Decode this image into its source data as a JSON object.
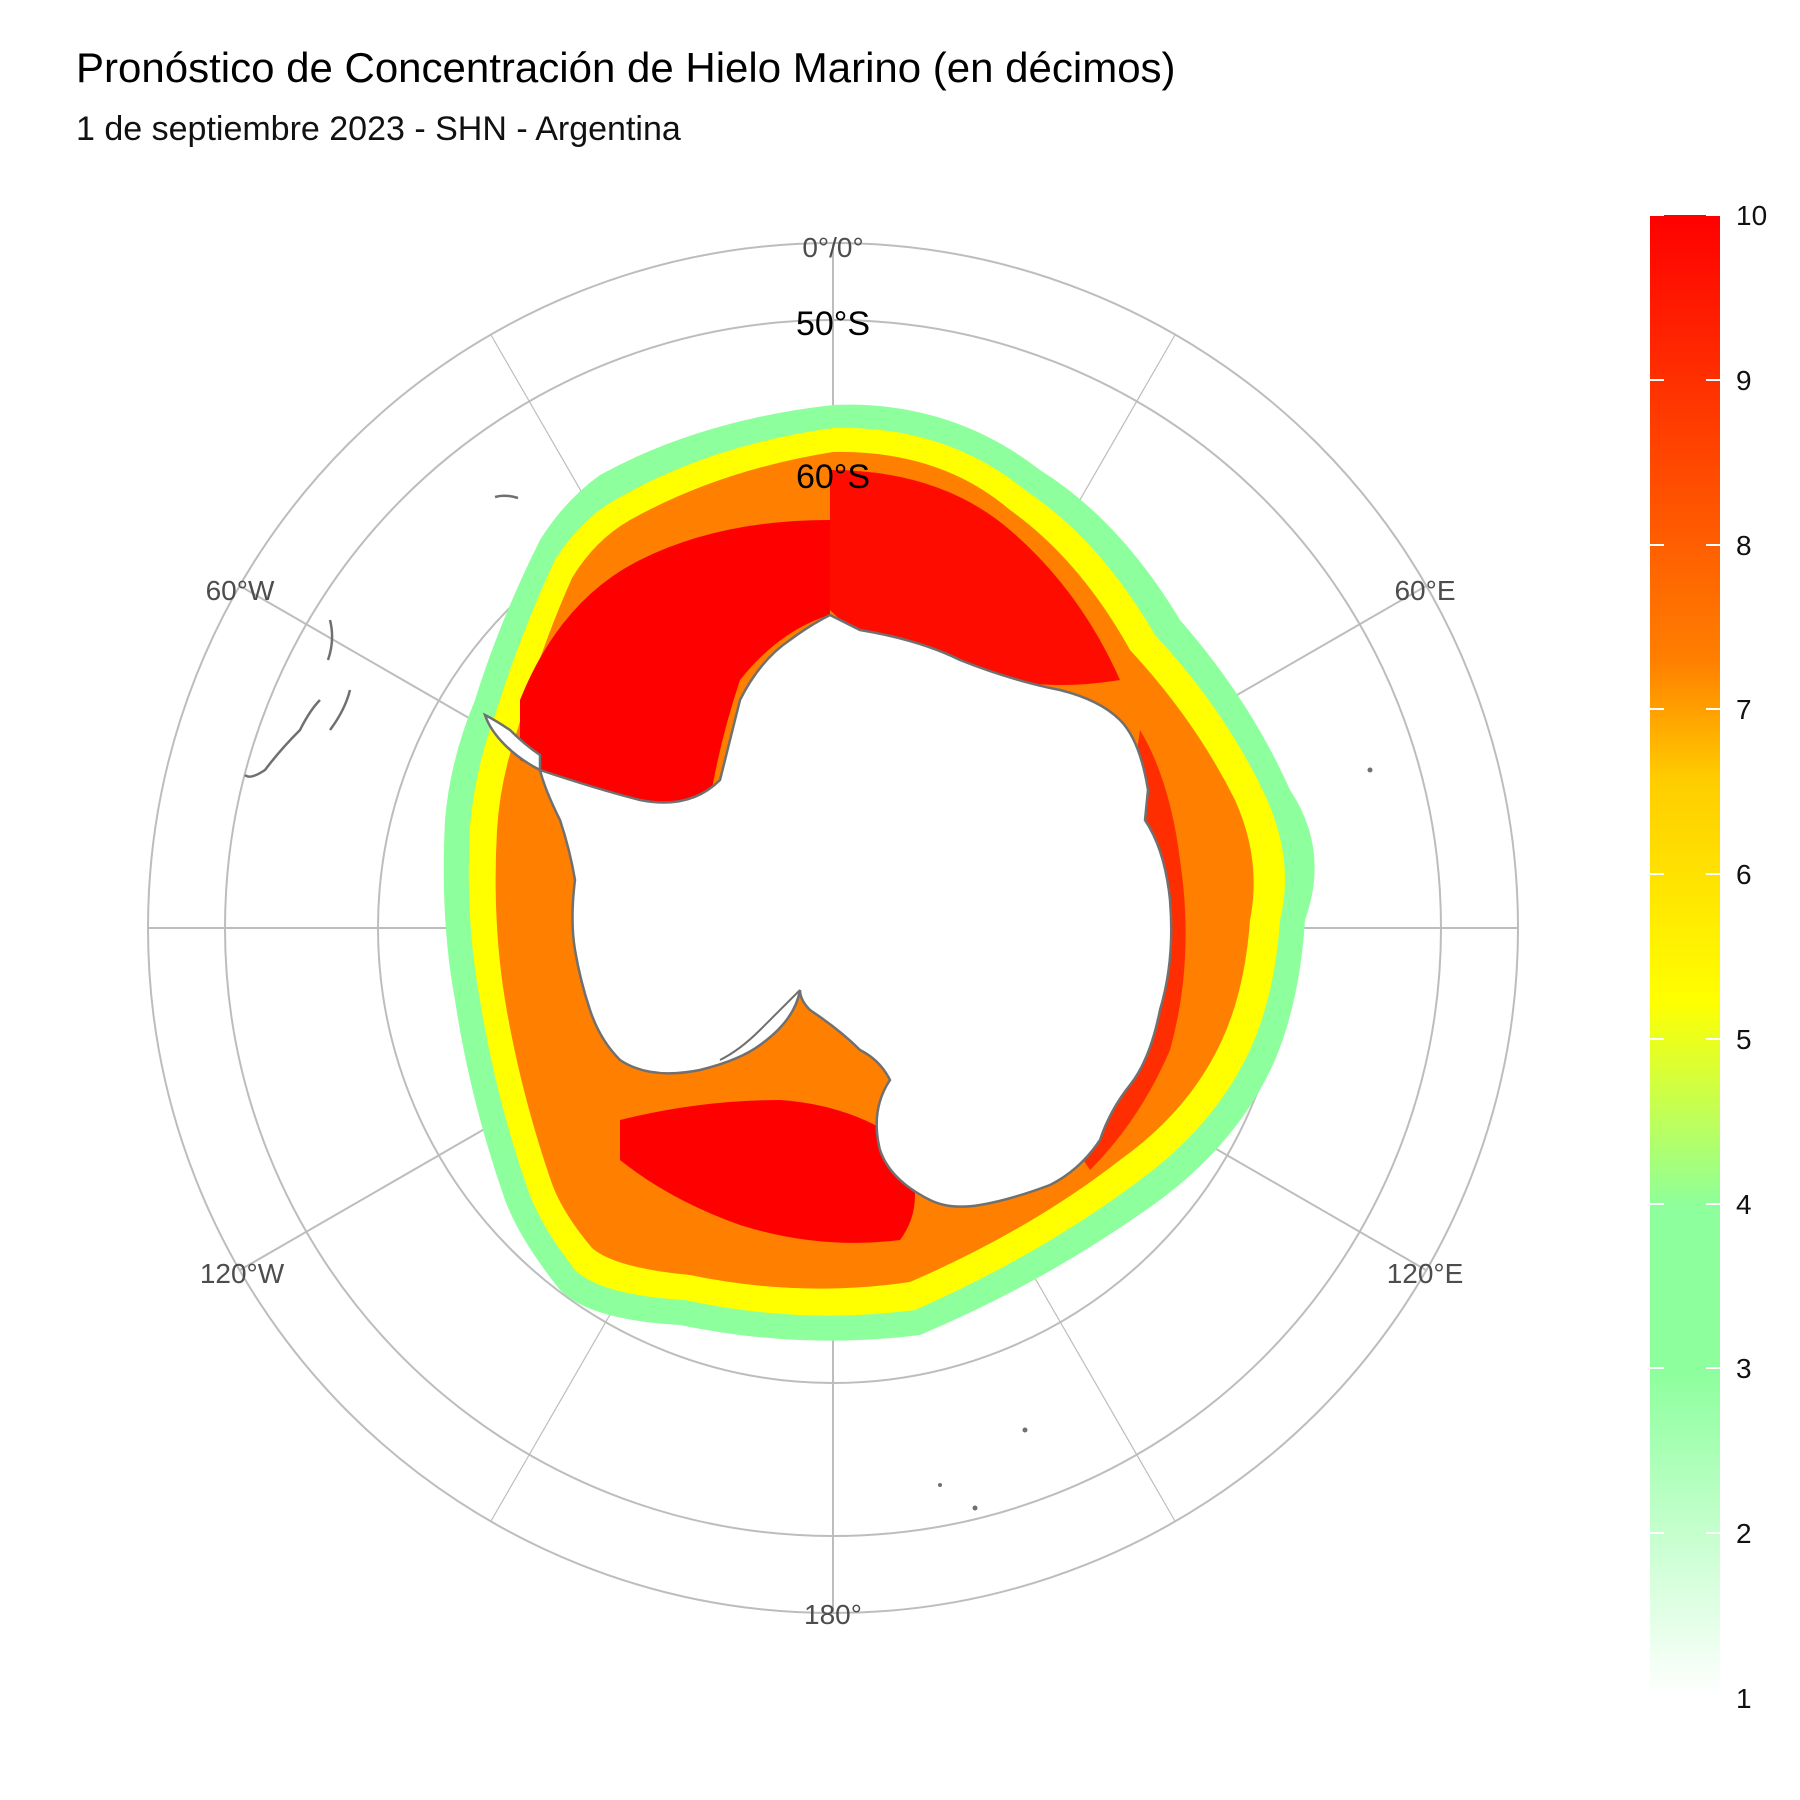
{
  "title": "Pronóstico de Concentración de Hielo Marino (en décimos)",
  "subtitle": "1 de septiembre 2023 - SHN - Argentina",
  "longitude_labels": {
    "top": "0°/0°",
    "upper_left": "60°W",
    "upper_right": "60°E",
    "lower_left": "120°W",
    "lower_right": "120°E",
    "bottom": "180°"
  },
  "latitude_labels": {
    "outer": "50°S",
    "inner": "60°S"
  },
  "legend": {
    "ticks": [
      "10",
      "9",
      "8",
      "7",
      "6",
      "5",
      "4",
      "3",
      "2",
      "1"
    ],
    "range": [
      1,
      10
    ],
    "colors": [
      "#ffffff",
      "#8dff9d",
      "#ffff00",
      "#ff7f00",
      "#ff0000"
    ]
  },
  "colors": {
    "grid": "#bdbdbd",
    "coastline": "#707070",
    "ice_low": "#8dff9d",
    "ice_mid": "#ffff00",
    "ice_high": "#ff7f00",
    "ice_max": "#ff0000"
  }
}
